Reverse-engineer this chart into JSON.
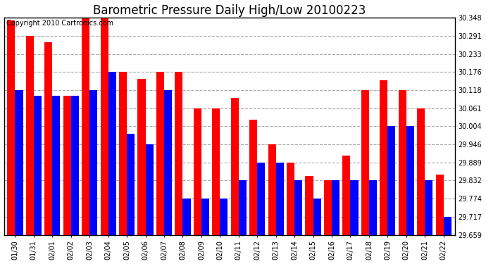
{
  "title": "Barometric Pressure Daily High/Low 20100223",
  "copyright": "Copyright 2010 Cartronics.com",
  "dates": [
    "01/30",
    "01/31",
    "02/01",
    "02/02",
    "02/03",
    "02/04",
    "02/05",
    "02/06",
    "02/07",
    "02/08",
    "02/09",
    "02/10",
    "02/11",
    "02/12",
    "02/13",
    "02/14",
    "02/15",
    "02/16",
    "02/17",
    "02/18",
    "02/19",
    "02/20",
    "02/21",
    "02/22"
  ],
  "highs": [
    30.34,
    30.291,
    30.27,
    30.1,
    30.348,
    30.348,
    30.176,
    30.155,
    30.176,
    30.176,
    30.061,
    30.061,
    30.094,
    30.025,
    29.946,
    29.889,
    29.846,
    29.832,
    29.91,
    30.118,
    30.15,
    30.118,
    30.061,
    29.85
  ],
  "lows": [
    30.118,
    30.1,
    30.1,
    30.1,
    30.118,
    30.176,
    29.98,
    29.946,
    30.118,
    29.774,
    29.774,
    29.774,
    29.832,
    29.889,
    29.889,
    29.832,
    29.774,
    29.832,
    29.832,
    29.832,
    30.004,
    30.004,
    29.832,
    29.717
  ],
  "high_color": "#ff0000",
  "low_color": "#0000ff",
  "bg_color": "#ffffff",
  "grid_color": "#aaaaaa",
  "bar_width": 0.42,
  "yticks": [
    29.659,
    29.717,
    29.774,
    29.832,
    29.889,
    29.946,
    30.004,
    30.061,
    30.118,
    30.176,
    30.233,
    30.291,
    30.348
  ],
  "ymin": 29.659,
  "ymax": 30.348,
  "title_fontsize": 12,
  "tick_fontsize": 7,
  "copyright_fontsize": 7
}
